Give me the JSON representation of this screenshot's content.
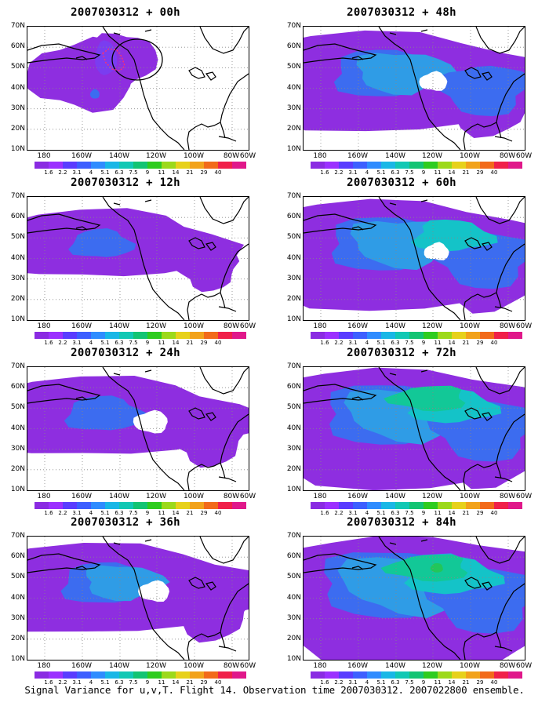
{
  "panels": [
    {
      "title": "2007030312 + 00h",
      "level": 0
    },
    {
      "title": "2007030312 + 48h",
      "level": 4
    },
    {
      "title": "2007030312 + 12h",
      "level": 1
    },
    {
      "title": "2007030312 + 60h",
      "level": 5
    },
    {
      "title": "2007030312 + 24h",
      "level": 2
    },
    {
      "title": "2007030312 + 72h",
      "level": 6
    },
    {
      "title": "2007030312 + 36h",
      "level": 3
    },
    {
      "title": "2007030312 + 84h",
      "level": 7
    }
  ],
  "y_labels": [
    "70N",
    "60N",
    "50N",
    "40N",
    "30N",
    "20N",
    "10N"
  ],
  "x_labels": [
    "180",
    "160W",
    "140W",
    "120W",
    "100W",
    "80W",
    "60W"
  ],
  "colorbar": {
    "labels": [
      "1.6",
      "2.2",
      "3.1",
      "4",
      "5.1",
      "6.3",
      "7.5",
      "9",
      "11",
      "14",
      "21",
      "29",
      "40"
    ],
    "colors": [
      "#8a2be2",
      "#9b30ff",
      "#5a3cff",
      "#3d5fff",
      "#2f8cff",
      "#19b7e6",
      "#12c8b4",
      "#13c473",
      "#2ecc1f",
      "#9cd91a",
      "#e7d11a",
      "#f2a21a",
      "#f26a1a",
      "#f0204a",
      "#e0188a"
    ]
  },
  "caption": "Signal Variance for u,v,T. Flight 14. Observation time 2007030312. 2007022800 ensemble."
}
